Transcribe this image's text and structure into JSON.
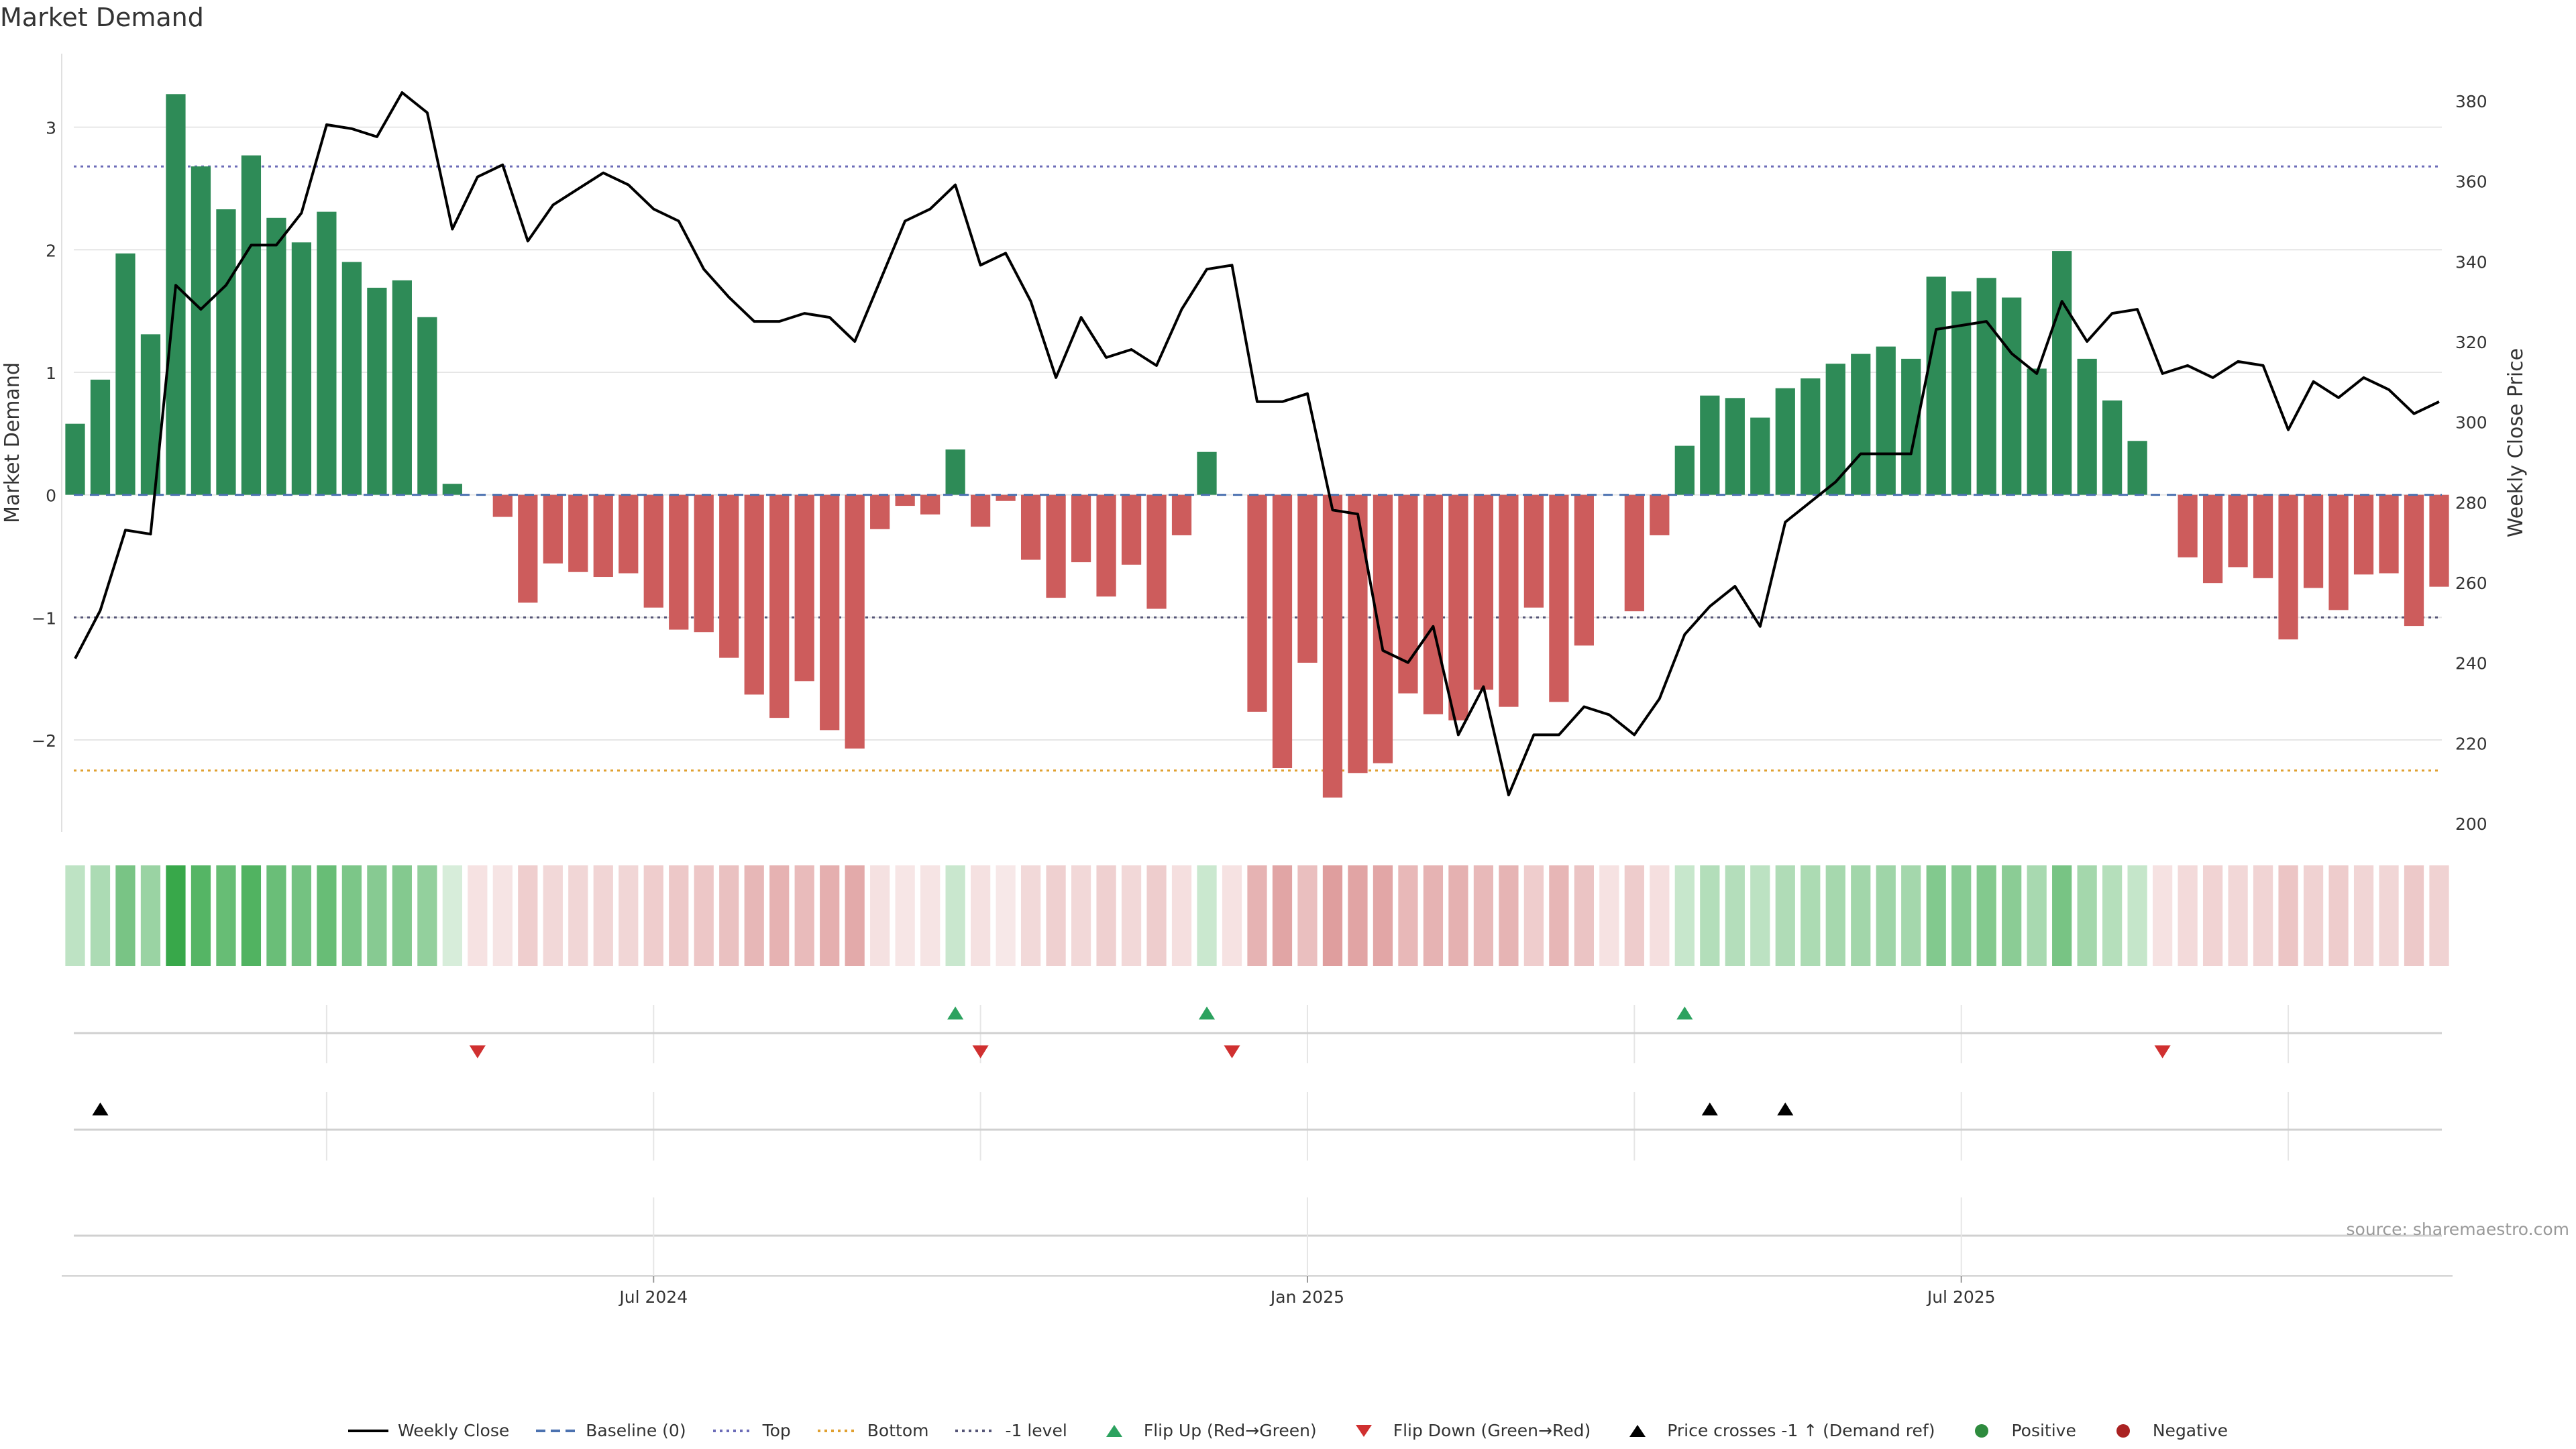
{
  "chart_data": {
    "type": "bar",
    "title": "Market Demand",
    "ylabel_left": "Market Demand",
    "ylabel_right": "Weekly Close Price",
    "ylim_left": [
      -2.75,
      3.6
    ],
    "ylim_right": [
      200,
      385
    ],
    "left_ticks": [
      3,
      2,
      1,
      0,
      -1,
      -2
    ],
    "left_tick_labels": [
      "3",
      "2",
      "1",
      "0",
      "−1",
      "−2"
    ],
    "right_ticks": [
      380,
      360,
      340,
      320,
      300,
      280,
      260,
      240,
      220,
      200
    ],
    "right_tick_labels": [
      "380",
      "360",
      "340",
      "320",
      "300",
      "280",
      "260",
      "240",
      "220",
      "200"
    ],
    "x_tick_labels": [
      {
        "label": "Jul 2024",
        "week": 23
      },
      {
        "label": "Jan 2025",
        "week": 49
      },
      {
        "label": "Jul 2025",
        "week": 75
      }
    ],
    "reference_lines": {
      "baseline": 0,
      "top": 2.68,
      "bottom": -2.25,
      "minus_one": -1
    },
    "demand": [
      0.58,
      0.94,
      1.97,
      1.31,
      3.27,
      2.68,
      2.33,
      2.77,
      2.26,
      2.06,
      2.31,
      1.9,
      1.69,
      1.75,
      1.45,
      0.09,
      0.0,
      -0.18,
      -0.88,
      -0.56,
      -0.63,
      -0.67,
      -0.64,
      -0.92,
      -1.1,
      -1.12,
      -1.33,
      -1.63,
      -1.82,
      -1.52,
      -1.92,
      -2.07,
      -0.28,
      -0.09,
      -0.16,
      0.37,
      -0.26,
      -0.05,
      -0.53,
      -0.84,
      -0.55,
      -0.83,
      -0.57,
      -0.93,
      -0.33,
      0.35,
      0.0,
      -1.77,
      -2.23,
      -1.37,
      -2.47,
      -2.27,
      -2.19,
      -1.62,
      -1.79,
      -1.84,
      -1.59,
      -1.73,
      -0.92,
      -1.69,
      -1.23,
      0.0,
      -0.95,
      -0.33,
      0.4,
      0.81,
      0.79,
      0.63,
      0.87,
      0.95,
      1.07,
      1.15,
      1.21,
      1.11,
      1.78,
      1.66,
      1.77,
      1.61,
      1.03,
      1.99,
      1.11,
      0.77,
      0.44,
      0.0,
      -0.51,
      -0.72,
      -0.59,
      -0.68,
      -1.18,
      -0.76,
      -0.94,
      -0.65,
      -0.64,
      -1.07,
      -0.75
    ],
    "price": [
      241,
      253,
      273,
      272,
      334,
      328,
      334,
      344,
      344,
      352,
      374,
      373,
      371,
      382,
      377,
      348,
      361,
      364,
      345,
      354,
      358,
      362,
      359,
      353,
      350,
      338,
      331,
      325,
      325,
      327,
      326,
      320,
      335,
      350,
      353,
      359,
      339,
      342,
      330,
      311,
      326,
      316,
      318,
      314,
      328,
      338,
      339,
      305,
      305,
      307,
      278,
      277,
      243,
      240,
      249,
      222,
      234,
      207,
      222,
      222,
      229,
      227,
      222,
      231,
      247,
      254,
      259,
      249,
      275,
      280,
      285,
      292,
      292,
      292,
      323,
      324,
      325,
      317,
      312,
      330,
      320,
      327,
      328,
      312,
      314,
      311,
      315,
      314,
      298,
      310,
      306,
      311,
      308,
      302,
      305
    ],
    "flip_up_weeks": [
      35,
      45,
      64
    ],
    "flip_down_weeks": [
      16,
      36,
      46,
      83
    ],
    "price_cross_weeks": [
      1,
      65,
      68
    ],
    "legend": [
      {
        "label": "Weekly Close",
        "kind": "line-solid",
        "color": "#000000"
      },
      {
        "label": "Baseline (0)",
        "kind": "line-dash",
        "color": "#4c72b0"
      },
      {
        "label": "Top",
        "kind": "line-dot",
        "color": "#6c6cb8"
      },
      {
        "label": "Bottom",
        "kind": "line-dot",
        "color": "#e0a030"
      },
      {
        "label": "-1 level",
        "kind": "line-dot",
        "color": "#555577"
      },
      {
        "label": "Flip Up (Red→Green)",
        "kind": "tri-up",
        "color": "#2ca25f"
      },
      {
        "label": "Flip Down (Green→Red)",
        "kind": "tri-down",
        "color": "#d03030"
      },
      {
        "label": "Price crosses -1 ↑ (Demand ref)",
        "kind": "tri-up",
        "color": "#000000"
      },
      {
        "label": "Positive",
        "kind": "dot",
        "color": "#2e8b3e"
      },
      {
        "label": "Negative",
        "kind": "dot",
        "color": "#aa2222"
      }
    ],
    "colors": {
      "positive": "#2e8b57",
      "negative": "#cd5c5c",
      "price": "#000000",
      "grid": "#e6e6e6"
    }
  },
  "source": "source: sharemaestro.com"
}
